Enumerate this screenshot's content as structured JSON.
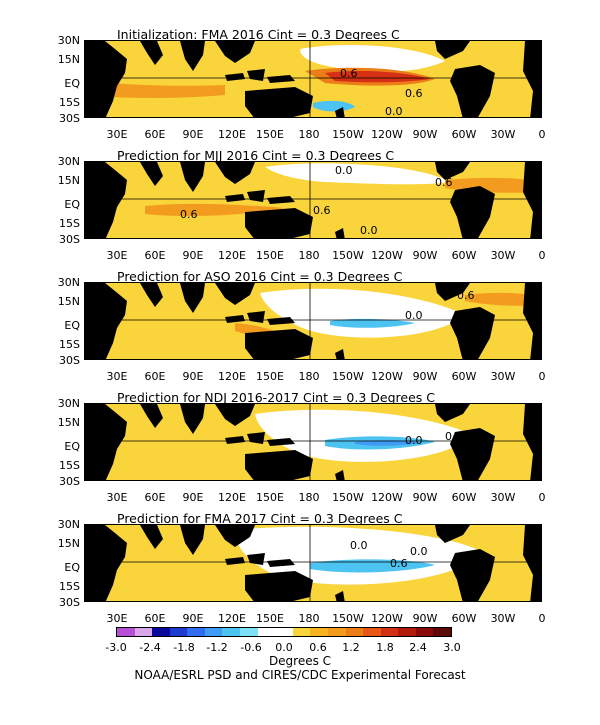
{
  "panels": [
    {
      "title": "Initialization: FMA 2016  Cint = 0.3 Degrees C",
      "contour_labels": [
        "0.6",
        "0.6",
        "0.0"
      ]
    },
    {
      "title": "Prediction for MJJ 2016  Cint = 0.3 Degrees C",
      "contour_labels": [
        "0.0",
        "0.6",
        "0.6",
        "0.0",
        "0.6"
      ]
    },
    {
      "title": "Prediction for ASO 2016  Cint = 0.3 Degrees C",
      "contour_labels": [
        "0.6",
        "0.0"
      ]
    },
    {
      "title": "Prediction for NDJ 2016-2017  Cint = 0.3 Degrees C",
      "contour_labels": [
        "0.0",
        "0.0"
      ]
    },
    {
      "title": "Prediction for FMA 2017  Cint = 0.3 Degrees C",
      "contour_labels": [
        "0.0",
        "0.0",
        "0.6"
      ]
    }
  ],
  "lat_labels": [
    "30N",
    "15N",
    "EQ",
    "15S",
    "30S"
  ],
  "lon_labels": [
    "30E",
    "60E",
    "90E",
    "120E",
    "150E",
    "180",
    "150W",
    "120W",
    "90W",
    "60W",
    "30W",
    "0"
  ],
  "colorbar": {
    "colors": [
      "#b44fd6",
      "#d9a6e8",
      "#0a0a9e",
      "#1e3cd2",
      "#2f6cf0",
      "#3f9bf3",
      "#4dc3f2",
      "#7edff5",
      "#ffffff",
      "#ffffff",
      "#fad43b",
      "#f7b420",
      "#f29b1f",
      "#ec7e1a",
      "#e65718",
      "#d63014",
      "#b21a0e",
      "#8b0a0a",
      "#5a0a0a"
    ],
    "tick_labels": [
      "-3.0",
      "-2.4",
      "-1.8",
      "-1.2",
      "-0.6",
      "0.0",
      "0.6",
      "1.2",
      "1.8",
      "2.4",
      "3.0"
    ]
  },
  "units": "Degrees C",
  "credit": "NOAA/ESRL PSD and CIRES/CDC Experimental Forecast"
}
